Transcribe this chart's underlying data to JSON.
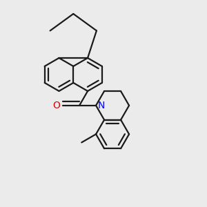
{
  "background_color": "#ebebeb",
  "bond_color": "#1a1a1a",
  "nitrogen_color": "#0000ee",
  "oxygen_color": "#dd0000",
  "lw": 1.6,
  "dbo": 0.018,
  "figsize": [
    3.0,
    3.0
  ],
  "dpi": 100,
  "xlim": [
    0.0,
    1.0
  ],
  "ylim": [
    0.0,
    1.0
  ]
}
